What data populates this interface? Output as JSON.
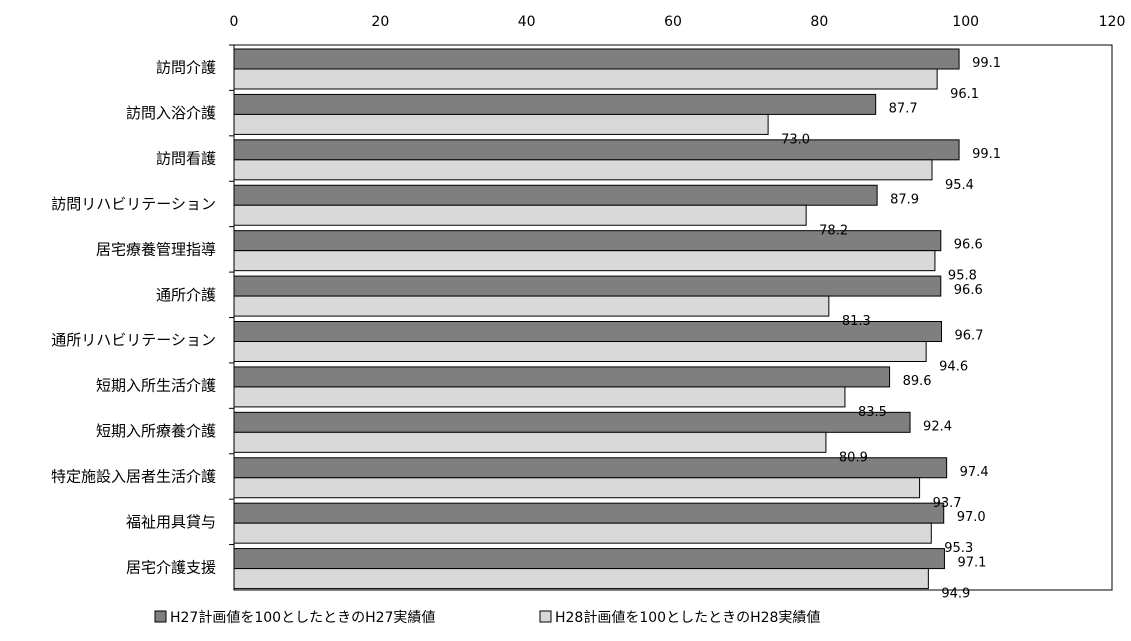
{
  "chart_data": {
    "type": "bar",
    "orientation": "horizontal",
    "title": "",
    "xlabel": "",
    "ylabel": "",
    "xlim": [
      0,
      120
    ],
    "x_ticks": [
      0,
      20,
      40,
      60,
      80,
      100,
      120
    ],
    "x_axis_position": "top",
    "grid": false,
    "legend_position": "bottom",
    "categories": [
      "訪問介護",
      "訪問入浴介護",
      "訪問看護",
      "訪問リハビリテーション",
      "居宅療養管理指導",
      "通所介護",
      "通所リハビリテーション",
      "短期入所生活介護",
      "短期入所療養介護",
      "特定施設入居者生活介護",
      "福祉用具貸与",
      "居宅介護支援"
    ],
    "series": [
      {
        "name": "H27計画値を100としたときのH27実績値",
        "color": "#7f7f7f",
        "values": [
          99.1,
          87.7,
          99.1,
          87.9,
          96.6,
          96.6,
          96.7,
          89.6,
          92.4,
          97.4,
          97.0,
          97.1
        ],
        "labels": [
          "99.1",
          "87.7",
          "99.1",
          "87.9",
          "96.6",
          "96.6",
          "96.7",
          "89.6",
          "92.4",
          "97.4",
          "97.0",
          "97.1"
        ]
      },
      {
        "name": "H28計画値を100としたときのH28実績値",
        "color": "#d9d9d9",
        "values": [
          96.1,
          73.0,
          95.4,
          78.2,
          95.8,
          81.3,
          94.6,
          83.5,
          80.9,
          93.7,
          95.3,
          94.9
        ],
        "labels": [
          "96.1",
          "73.0",
          "95.4",
          "78.2",
          "95.8",
          "81.3",
          "94.6",
          "83.5",
          "80.9",
          "93.7",
          "95.3",
          "94.9"
        ]
      }
    ]
  }
}
